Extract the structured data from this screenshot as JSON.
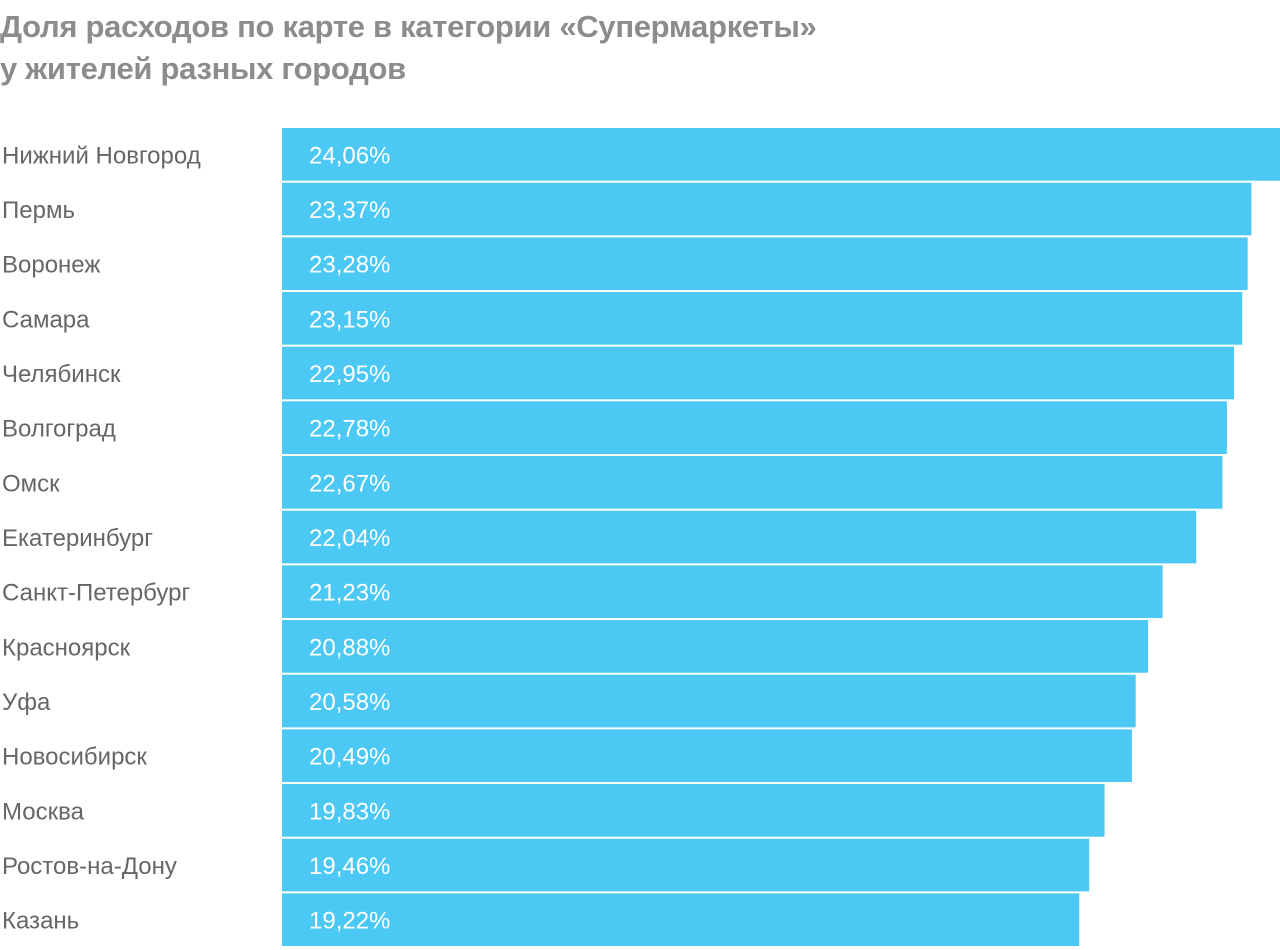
{
  "chart_data": {
    "type": "bar",
    "orientation": "horizontal",
    "title_line1": "Доля расходов по карте в категории «Супермаркеты»",
    "title_line2": "у жителей разных городов",
    "categories": [
      "Нижний Новгород",
      "Пермь",
      "Воронеж",
      "Самара",
      "Челябинск",
      "Волгоград",
      "Омск",
      "Екатеринбург",
      "Санкт-Петербург",
      "Красноярск",
      "Уфа",
      "Новосибирск",
      "Москва",
      "Ростов-на-Дону",
      "Казань"
    ],
    "values": [
      24.06,
      23.37,
      23.28,
      23.15,
      22.95,
      22.78,
      22.67,
      22.04,
      21.23,
      20.88,
      20.58,
      20.49,
      19.83,
      19.46,
      19.22
    ],
    "labels": [
      "24,06%",
      "23,37%",
      "23,28%",
      "23,15%",
      "22,95%",
      "22,78%",
      "22,67%",
      "22,04%",
      "21,23%",
      "20,88%",
      "20,58%",
      "20,49%",
      "19,83%",
      "19,46%",
      "19,22%"
    ],
    "unit": "%",
    "xlim": [
      0,
      24.06
    ],
    "grid": false,
    "legend": "none",
    "bar_color": "#4bc8f3",
    "label_color": "#ffffff",
    "category_color": "#666666"
  }
}
